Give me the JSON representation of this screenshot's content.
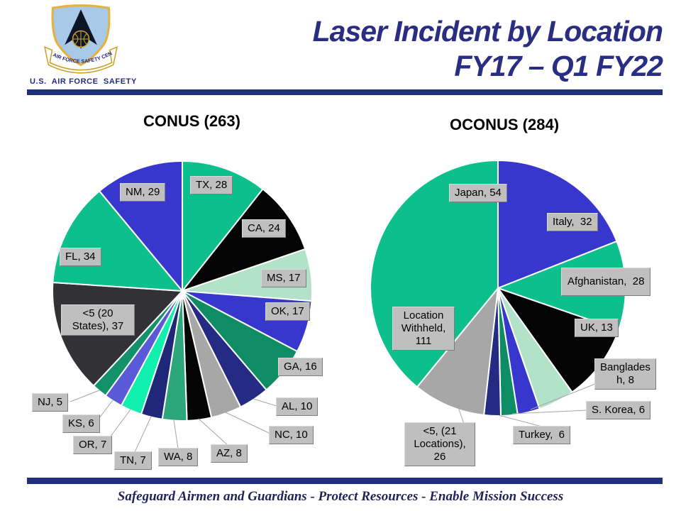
{
  "header": {
    "agency_label": "U.S.  AIR FORCE  SAFETY",
    "logo_ribbon_text": "AIR FORCE SAFETY CENTER",
    "title_line1": "Laser Incident by Location",
    "title_line2": "FY17 – Q1 FY22"
  },
  "footer": {
    "motto": "Safeguard Airmen and Guardians - Protect Resources - Enable Mission Success"
  },
  "colors": {
    "slide_navy": "#2A2E82",
    "rule_navy": "#20307A",
    "label_box_gray": "#BFBFBF",
    "leader_line_gray": "#A6A6A6"
  },
  "chart_data": [
    {
      "type": "pie",
      "title": "CONUS (263)",
      "total": 263,
      "legend_position": "none",
      "slices": [
        {
          "label": "TX",
          "value": 28,
          "color": "#0DBF8C",
          "display": "TX, 28"
        },
        {
          "label": "CA",
          "value": 24,
          "color": "#040404",
          "display": "CA, 24"
        },
        {
          "label": "MS",
          "value": 17,
          "color": "#B2E2C8",
          "display": "MS, 17"
        },
        {
          "label": "OK",
          "value": 17,
          "color": "#3737CE",
          "display": "OK, 17"
        },
        {
          "label": "GA",
          "value": 16,
          "color": "#0E8C64",
          "display": "GA, 16"
        },
        {
          "label": "AL",
          "value": 10,
          "color": "#232B82",
          "display": "AL, 10"
        },
        {
          "label": "NC",
          "value": 10,
          "color": "#A7A7A7",
          "display": "NC, 10"
        },
        {
          "label": "AZ",
          "value": 8,
          "color": "#040404",
          "display": "AZ, 8"
        },
        {
          "label": "WA",
          "value": 8,
          "color": "#2EA67B",
          "display": "WA, 8"
        },
        {
          "label": "TN",
          "value": 7,
          "color": "#1F2878",
          "display": "TN, 7"
        },
        {
          "label": "OR",
          "value": 7,
          "color": "#10EFAD",
          "display": "OR, 7"
        },
        {
          "label": "KS",
          "value": 6,
          "color": "#5A5AD8",
          "display": "KS, 6"
        },
        {
          "label": "NJ",
          "value": 5,
          "color": "#12916B",
          "display": "NJ, 5"
        },
        {
          "label": "<5 (20 States)",
          "value": 37,
          "color": "#323236",
          "display": "<5 (20\nStates), 37"
        },
        {
          "label": "FL",
          "value": 34,
          "color": "#0DBF8C",
          "display": "FL, 34"
        },
        {
          "label": "NM",
          "value": 29,
          "color": "#3737CE",
          "display": "NM, 29"
        }
      ]
    },
    {
      "type": "pie",
      "title": "OCONUS (284)",
      "total": 284,
      "legend_position": "none",
      "slices": [
        {
          "label": "Japan",
          "value": 54,
          "color": "#3737CE",
          "display": "Japan, 54"
        },
        {
          "label": "Italy",
          "value": 32,
          "color": "#0DBF8C",
          "display": "Italy,  32"
        },
        {
          "label": "Afghanistan",
          "value": 28,
          "color": "#040404",
          "display": "Afghanistan,  28"
        },
        {
          "label": "UK",
          "value": 13,
          "color": "#B2E2C8",
          "display": "UK, 13"
        },
        {
          "label": "Bangladesh",
          "value": 8,
          "color": "#3737CE",
          "display": "Banglades\nh, 8"
        },
        {
          "label": "S. Korea",
          "value": 6,
          "color": "#0E8C64",
          "display": "S. Korea, 6"
        },
        {
          "label": "Turkey",
          "value": 6,
          "color": "#232B82",
          "display": "Turkey,  6"
        },
        {
          "label": "<5 (21 Locations)",
          "value": 26,
          "color": "#A7A7A7",
          "display": "<5, (21\nLocations),\n26"
        },
        {
          "label": "Location Withheld",
          "value": 111,
          "color": "#0DBF8C",
          "display": "Location\nWithheld,\n111"
        }
      ]
    }
  ]
}
